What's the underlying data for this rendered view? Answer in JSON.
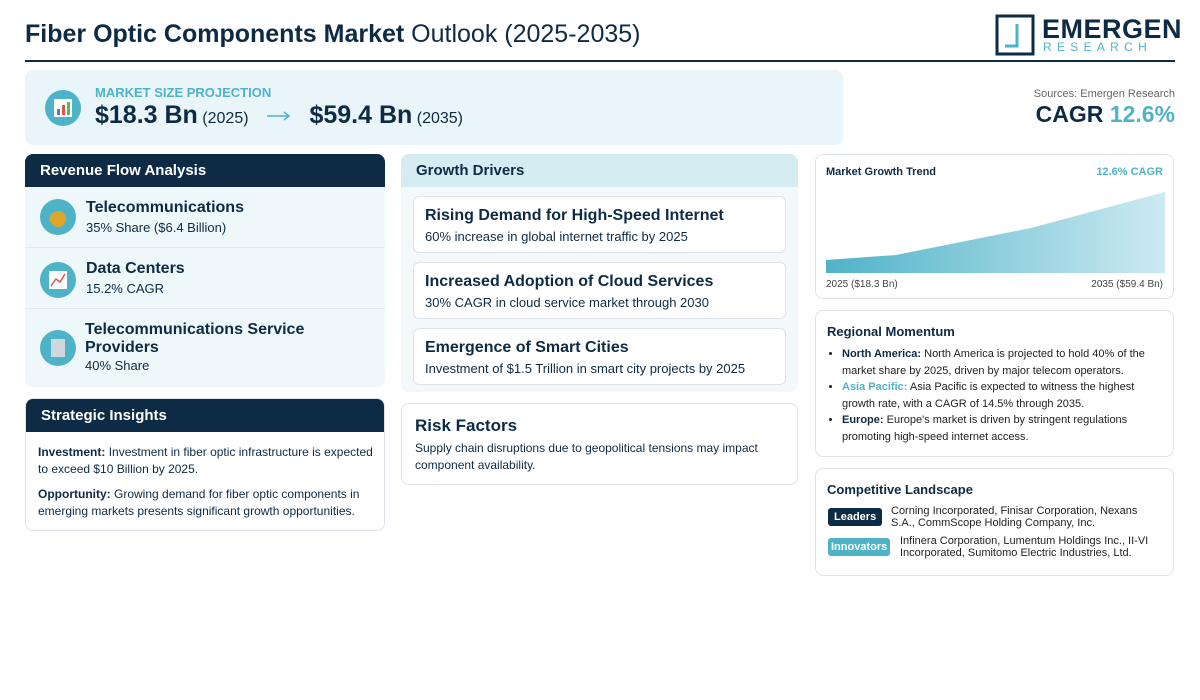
{
  "header": {
    "title_bold": "Fiber Optic Components Market",
    "title_rest": "Outlook (2025-2035)",
    "logo_main": "EMERGEN",
    "logo_sub": "RESEARCH"
  },
  "projection": {
    "label": "MARKET SIZE PROJECTION",
    "start_value": "$18.3 Bn",
    "start_year": "(2025)",
    "end_value": "$59.4 Bn",
    "end_year": "(2035)"
  },
  "sources": "Sources: Emergen Research",
  "cagr": {
    "label": "CAGR",
    "value": "12.6%"
  },
  "revenue_flow": {
    "title": "Revenue Flow Analysis",
    "items": [
      {
        "name": "Telecommunications",
        "detail": "35% Share ($6.4 Billion)"
      },
      {
        "name": "Data Centers",
        "detail": "15.2% CAGR"
      },
      {
        "name": "Telecommunications Service Providers",
        "detail": "40% Share"
      }
    ]
  },
  "strategic_insights": {
    "title": "Strategic Insights",
    "items": [
      {
        "label": "Investment:",
        "text": "Investment in fiber optic infrastructure is expected to exceed $10 Billion by 2025."
      },
      {
        "label": "Opportunity:",
        "text": "Growing demand for fiber optic components in emerging markets presents significant growth opportunities."
      }
    ]
  },
  "growth_drivers": {
    "title": "Growth Drivers",
    "items": [
      {
        "title": "Rising Demand for High-Speed Internet",
        "detail": "60% increase in global internet traffic by 2025"
      },
      {
        "title": "Increased Adoption of Cloud Services",
        "detail": "30% CAGR in cloud service market through 2030"
      },
      {
        "title": "Emergence of Smart Cities",
        "detail": "Investment of $1.5 Trillion in smart city projects by 2025"
      }
    ]
  },
  "risk_factors": {
    "title": "Risk Factors",
    "text": "Supply chain disruptions due to geopolitical tensions may impact component availability."
  },
  "growth_trend": {
    "title": "Market Growth Trend",
    "cagr": "12.6% CAGR",
    "start_label": "2025 ($18.3 Bn)",
    "end_label": "2035 ($59.4 Bn)"
  },
  "regional_momentum": {
    "title": "Regional Momentum",
    "items": [
      {
        "region": "North America:",
        "text": "North America is projected to hold 40% of the market share by 2025, driven by major telecom operators."
      },
      {
        "region": "Asia Pacific:",
        "text": "Asia Pacific is expected to witness the highest growth rate, with a CAGR of 14.5% through 2035."
      },
      {
        "region": "Europe:",
        "text": "Europe's market is driven by stringent regulations promoting high-speed internet access."
      }
    ]
  },
  "competitive_landscape": {
    "title": "Competitive Landscape",
    "groups": [
      {
        "label": "Leaders",
        "companies": "Corning Incorporated, Finisar Corporation, Nexans S.A., CommScope Holding Company, Inc."
      },
      {
        "label": "Innovators",
        "companies": "Infinera Corporation, Lumentum Holdings Inc., II-VI Incorporated, Sumitomo Electric Industries, Ltd."
      }
    ]
  }
}
